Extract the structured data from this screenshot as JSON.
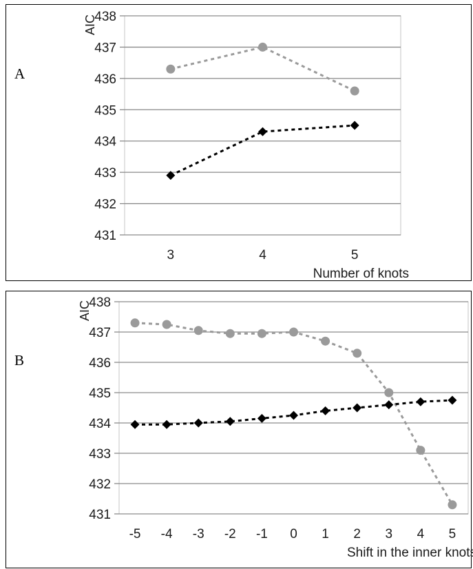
{
  "chart_data": [
    {
      "type": "line",
      "panel_label": "A",
      "xlabel": "Number of knots",
      "ylabel": "AIC",
      "categories": [
        "3",
        "4",
        "5"
      ],
      "ylim": [
        431,
        438
      ],
      "yticks": [
        431,
        432,
        433,
        434,
        435,
        436,
        437,
        438
      ],
      "grid": true,
      "series": [
        {
          "values": [
            436.3,
            437.0,
            435.6
          ],
          "color": "#9a9a9a",
          "marker": "circle"
        },
        {
          "values": [
            432.9,
            434.3,
            434.5
          ],
          "color": "#000000",
          "marker": "diamond"
        }
      ]
    },
    {
      "type": "line",
      "panel_label": "B",
      "xlabel": "Shift in the inner knots",
      "ylabel": "AIC",
      "categories": [
        "-5",
        "-4",
        "-3",
        "-2",
        "-1",
        "0",
        "1",
        "2",
        "3",
        "4",
        "5"
      ],
      "ylim": [
        431,
        438
      ],
      "yticks": [
        431,
        432,
        433,
        434,
        435,
        436,
        437,
        438
      ],
      "grid": true,
      "series": [
        {
          "values": [
            437.3,
            437.25,
            437.05,
            436.95,
            436.95,
            437.0,
            436.7,
            436.3,
            435.0,
            433.1,
            431.3
          ],
          "color": "#9a9a9a",
          "marker": "circle"
        },
        {
          "values": [
            433.95,
            433.95,
            434.0,
            434.05,
            434.15,
            434.25,
            434.4,
            434.5,
            434.6,
            434.7,
            434.75
          ],
          "color": "#000000",
          "marker": "diamond"
        }
      ]
    }
  ]
}
